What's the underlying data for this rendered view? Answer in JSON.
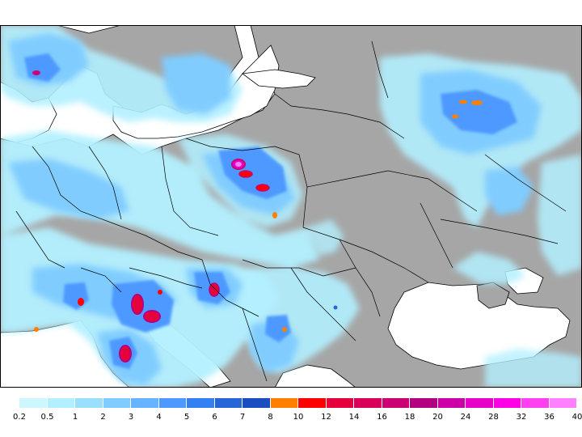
{
  "map": {
    "land_color": "#a6a6a6",
    "water_color": "#ffffff",
    "border_color": "#000000"
  },
  "legend": {
    "colors": [
      "#ccf7ff",
      "#b3f0ff",
      "#99e0ff",
      "#80ccff",
      "#66b3ff",
      "#4d99ff",
      "#3380f2",
      "#2666d9",
      "#1a4dbf",
      "#ff8000",
      "#ff0000",
      "#e6003c",
      "#d90059",
      "#cc0073",
      "#b30080",
      "#cc00a6",
      "#e600c8",
      "#ff00e6",
      "#ff40f0",
      "#ff80ff"
    ],
    "labels": [
      "0.2",
      "0.5",
      "1",
      "2",
      "3",
      "4",
      "5",
      "6",
      "7",
      "8",
      "10",
      "12",
      "14",
      "16",
      "18",
      "20",
      "24",
      "28",
      "32",
      "36",
      "40"
    ]
  }
}
